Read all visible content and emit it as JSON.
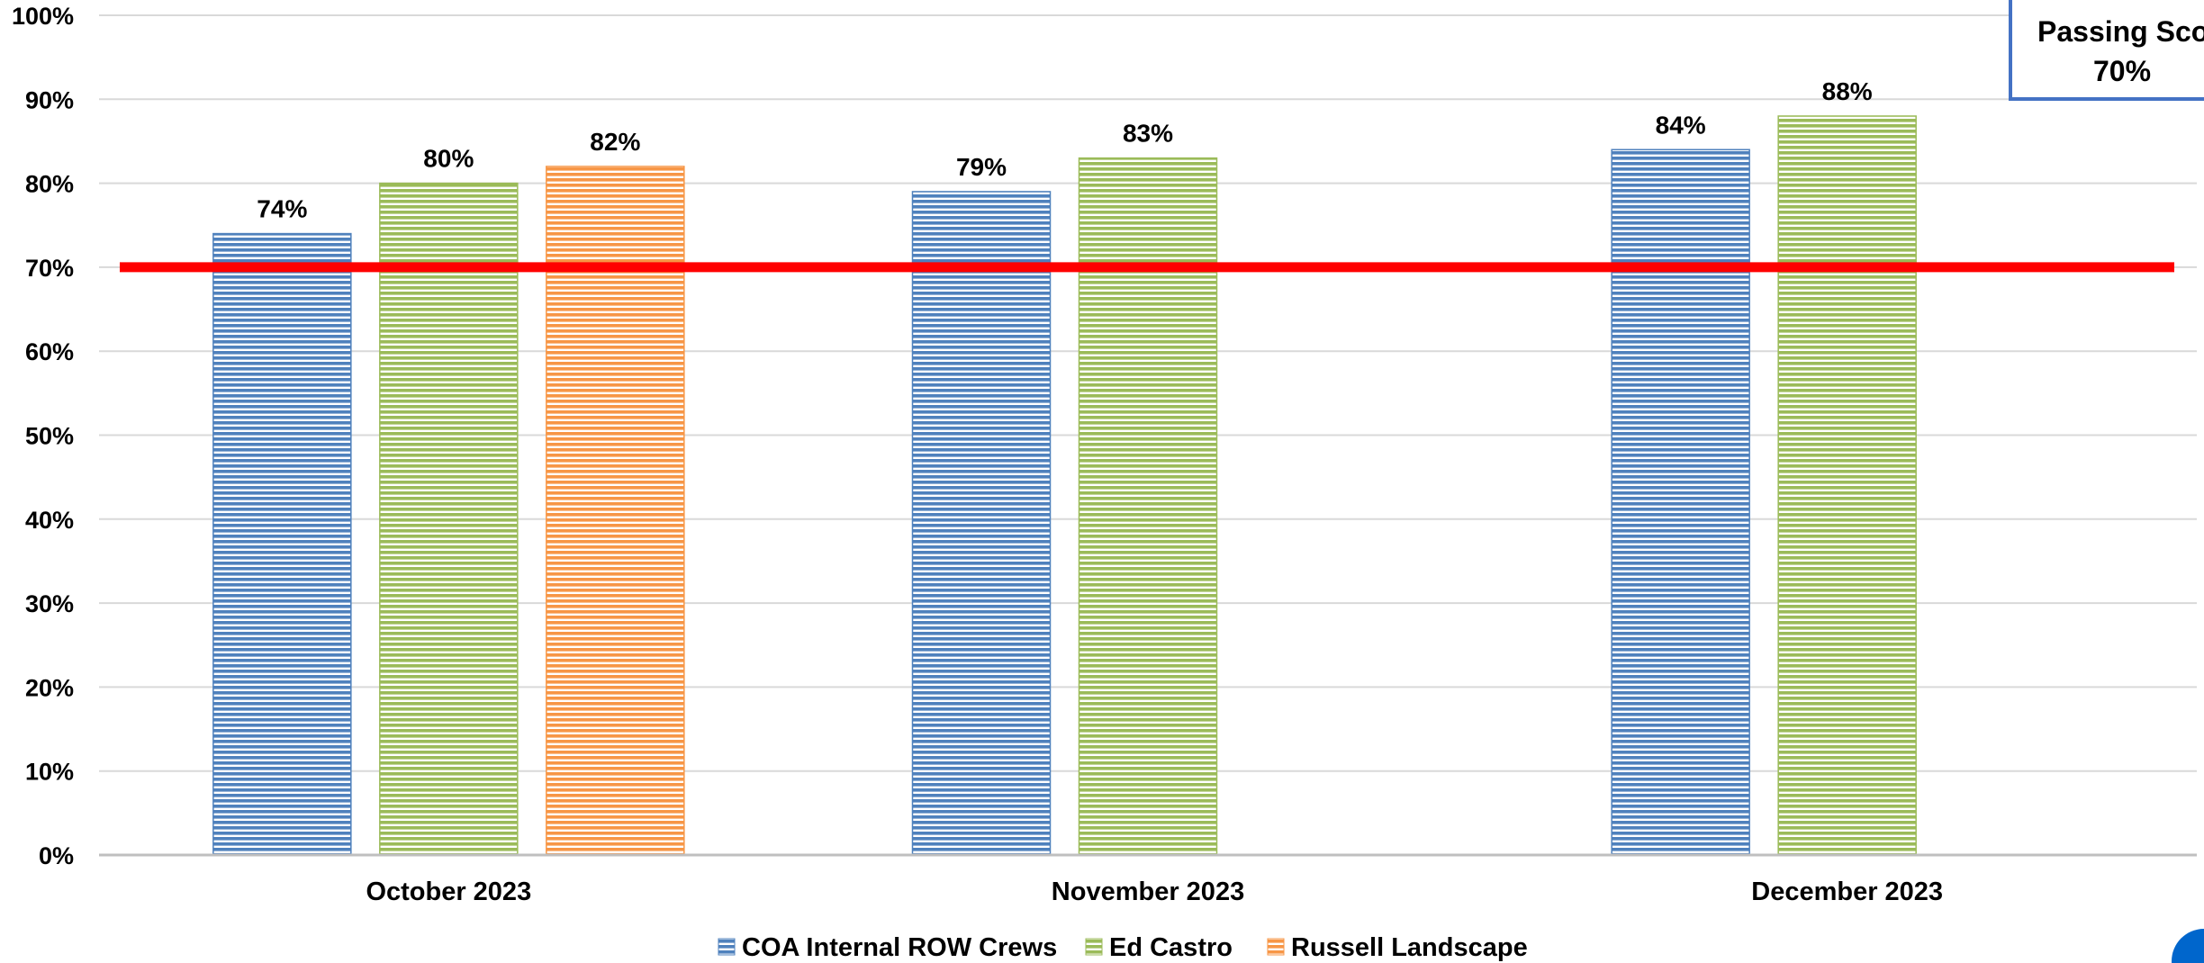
{
  "chart_data": {
    "type": "bar",
    "title": "",
    "xlabel": "",
    "ylabel": "",
    "ylim": [
      0,
      100
    ],
    "yticks": [
      "0%",
      "10%",
      "20%",
      "30%",
      "40%",
      "50%",
      "60%",
      "70%",
      "80%",
      "90%",
      "100%"
    ],
    "categories": [
      "October 2023",
      "November 2023",
      "December 2023"
    ],
    "series": [
      {
        "name": "COA Internal ROW Crews",
        "color": "#4f81bd",
        "values": [
          74,
          79,
          84
        ],
        "labels": [
          "74%",
          "79%",
          "84%"
        ]
      },
      {
        "name": "Ed Castro",
        "color": "#9bbb59",
        "values": [
          80,
          83,
          88
        ],
        "labels": [
          "80%",
          "83%",
          "88%"
        ]
      },
      {
        "name": "Russell Landscape",
        "color": "#f79646",
        "values": [
          82,
          null,
          null
        ],
        "labels": [
          "82%",
          "",
          ""
        ]
      }
    ],
    "reference_line": {
      "value": 70,
      "color": "#ff0000"
    },
    "annotation": {
      "line1": "Passing Scor",
      "line2": "70%"
    },
    "legend_position": "bottom",
    "grid": true
  }
}
